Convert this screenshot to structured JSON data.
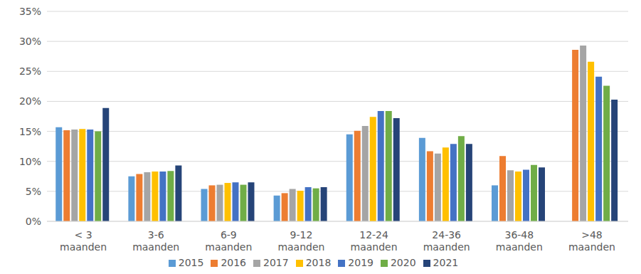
{
  "chart_data": {
    "type": "bar",
    "categories": [
      "< 3 maanden",
      "3-6 maanden",
      "6-9 maanden",
      "9-12 maanden",
      "12-24 maanden",
      "24-36 maanden",
      "36-48 maanden",
      ">48 maanden"
    ],
    "series": [
      {
        "name": "2015",
        "color": "#5B9BD5",
        "values": [
          15.7,
          7.5,
          5.4,
          4.3,
          14.5,
          13.9,
          6.0,
          null
        ]
      },
      {
        "name": "2016",
        "color": "#ED7D31",
        "values": [
          15.2,
          7.9,
          6.0,
          4.7,
          15.1,
          11.7,
          10.9,
          28.6
        ]
      },
      {
        "name": "2017",
        "color": "#A5A5A5",
        "values": [
          15.3,
          8.2,
          6.1,
          5.4,
          15.9,
          11.3,
          8.5,
          29.3
        ]
      },
      {
        "name": "2018",
        "color": "#FFC000",
        "values": [
          15.4,
          8.3,
          6.4,
          5.1,
          17.4,
          12.3,
          8.3,
          26.6
        ]
      },
      {
        "name": "2019",
        "color": "#4472C4",
        "values": [
          15.3,
          8.3,
          6.5,
          5.7,
          18.4,
          12.9,
          8.6,
          24.1
        ]
      },
      {
        "name": "2020",
        "color": "#70AD47",
        "values": [
          15.0,
          8.4,
          6.1,
          5.5,
          18.4,
          14.2,
          9.4,
          22.6
        ]
      },
      {
        "name": "2021",
        "color": "#264478",
        "values": [
          18.9,
          9.3,
          6.5,
          5.7,
          17.2,
          12.9,
          9.0,
          20.3
        ]
      }
    ],
    "ylim": [
      0,
      35
    ],
    "yticks": [
      {
        "value": 0,
        "label": "0%"
      },
      {
        "value": 5,
        "label": "5%"
      },
      {
        "value": 10,
        "label": "10%"
      },
      {
        "value": 15,
        "label": "15%"
      },
      {
        "value": 20,
        "label": "20%"
      },
      {
        "value": 25,
        "label": "25%"
      },
      {
        "value": 30,
        "label": "30%"
      },
      {
        "value": 35,
        "label": "35%"
      }
    ],
    "grid": true,
    "legend": "bottom"
  }
}
